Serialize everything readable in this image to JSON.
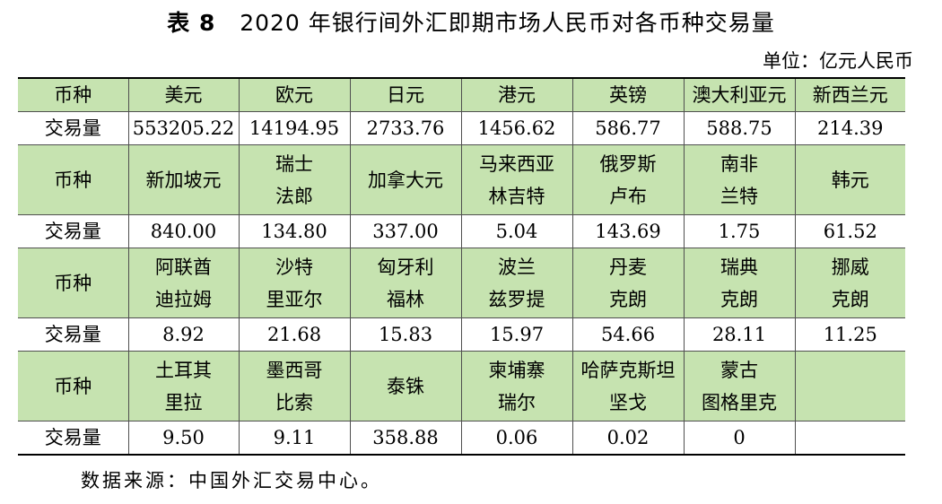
{
  "title": {
    "label": "表 8",
    "text": "2020 年银行间外汇即期市场人民币对各币种交易量"
  },
  "unit": "单位：亿元人民币",
  "table": {
    "groups": [
      {
        "header_label": "币种",
        "currencies": [
          [
            "美元"
          ],
          [
            "欧元"
          ],
          [
            "日元"
          ],
          [
            "港元"
          ],
          [
            "英镑"
          ],
          [
            "澳大利亚元"
          ],
          [
            "新西兰元"
          ]
        ],
        "volume_label": "交易量",
        "volumes": [
          "553205.22",
          "14194.95",
          "2733.76",
          "1456.62",
          "586.77",
          "588.75",
          "214.39"
        ]
      },
      {
        "header_label": "币种",
        "currencies": [
          [
            "新加坡元"
          ],
          [
            "瑞士",
            "法郎"
          ],
          [
            "加拿大元"
          ],
          [
            "马来西亚",
            "林吉特"
          ],
          [
            "俄罗斯",
            "卢布"
          ],
          [
            "南非",
            "兰特"
          ],
          [
            "韩元"
          ]
        ],
        "volume_label": "交易量",
        "volumes": [
          "840.00",
          "134.80",
          "337.00",
          "5.04",
          "143.69",
          "1.75",
          "61.52"
        ]
      },
      {
        "header_label": "币种",
        "currencies": [
          [
            "阿联酋",
            "迪拉姆"
          ],
          [
            "沙特",
            "里亚尔"
          ],
          [
            "匈牙利",
            "福林"
          ],
          [
            "波兰",
            "兹罗提"
          ],
          [
            "丹麦",
            "克朗"
          ],
          [
            "瑞典",
            "克朗"
          ],
          [
            "挪威",
            "克朗"
          ]
        ],
        "volume_label": "交易量",
        "volumes": [
          "8.92",
          "21.68",
          "15.83",
          "15.97",
          "54.66",
          "28.11",
          "11.25"
        ]
      },
      {
        "header_label": "币种",
        "currencies": [
          [
            "土耳其",
            "里拉"
          ],
          [
            "墨西哥",
            "比索"
          ],
          [
            "泰铢"
          ],
          [
            "柬埔寨",
            "瑞尔"
          ],
          [
            "哈萨克斯坦",
            "坚戈"
          ],
          [
            "蒙古",
            "图格里克"
          ],
          [
            ""
          ]
        ],
        "volume_label": "交易量",
        "volumes": [
          "9.50",
          "9.11",
          "358.88",
          "0.06",
          "0.02",
          "0",
          ""
        ]
      }
    ]
  },
  "source": "数据来源：中国外汇交易中心。",
  "colors": {
    "header_fill": "#c6e3b0",
    "border": "#4f4f4f"
  }
}
